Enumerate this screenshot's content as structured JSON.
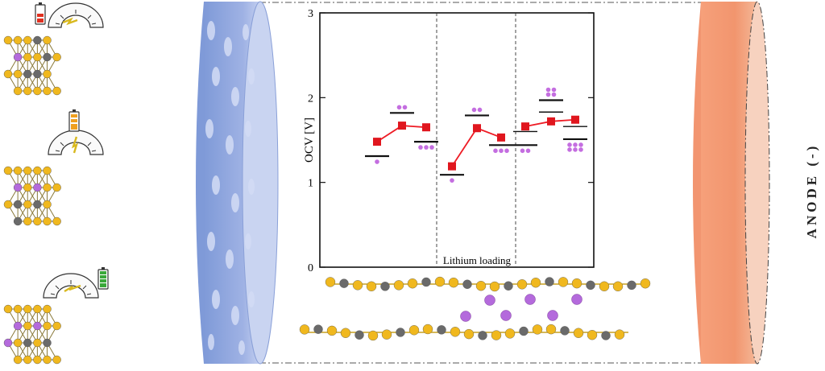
{
  "chart_data": {
    "type": "line",
    "title": "",
    "ylabel": "OCV [V]",
    "xlabel": "Lithium loading",
    "ylim": [
      0,
      3
    ],
    "yticks": [
      "0",
      "1",
      "2",
      "3"
    ],
    "grid": false,
    "panels": [
      {
        "configs": [
          1,
          2,
          3
        ],
        "ocv": [
          1.48,
          1.67,
          1.65
        ],
        "levels": [
          1.31,
          1.82,
          1.48
        ]
      },
      {
        "configs": [
          1,
          2,
          3
        ],
        "ocv": [
          1.19,
          1.64,
          1.53
        ],
        "levels": [
          1.09,
          1.79,
          1.44
        ]
      },
      {
        "configs": [
          2,
          4,
          6
        ],
        "ocv": [
          1.66,
          1.72,
          1.74
        ],
        "levels": [
          1.44,
          1.97,
          1.51
        ],
        "extra_levels": [
          1.6,
          1.83,
          1.66
        ]
      }
    ],
    "line_color": "#ee1c25",
    "marker_color": "#e0161e",
    "li_color": "#c46ee0"
  },
  "labels": {
    "anode": "ANODE (-)"
  },
  "colors": {
    "cathode_blue": "#6f8fd4",
    "anode_orange": "#f0906a",
    "atom_sulfur": "#f0b81e",
    "atom_carbon": "#6a6a6a",
    "atom_lithium": "#b46adc",
    "battery_low": "#e03020",
    "battery_mid": "#f0a020",
    "battery_full": "#3aa83a"
  },
  "icons": [
    "battery-low-icon",
    "speed-gauge-low-icon",
    "battery-mid-icon",
    "speed-gauge-mid-icon",
    "battery-full-icon",
    "speed-gauge-high-icon"
  ]
}
